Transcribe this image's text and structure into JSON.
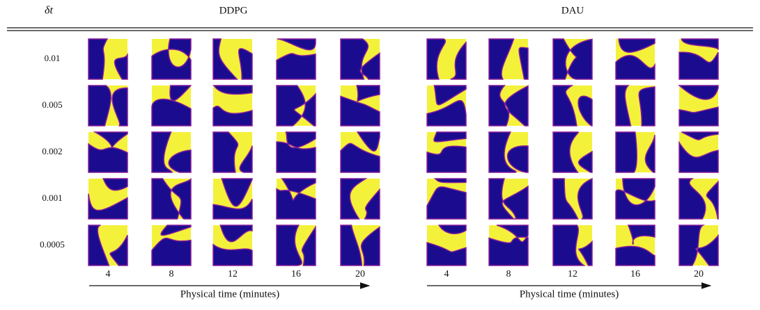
{
  "header": {
    "parameter": "δt"
  },
  "groups": [
    {
      "title": "DDPG",
      "times": [
        4,
        8,
        12,
        16,
        20
      ],
      "axis_label": "Physical time (minutes)"
    },
    {
      "title": "DAU",
      "times": [
        4,
        8,
        12,
        16,
        20
      ],
      "axis_label": "Physical time (minutes)"
    }
  ],
  "rows": [
    "0.01",
    "0.005",
    "0.002",
    "0.001",
    "0.0005"
  ]
}
